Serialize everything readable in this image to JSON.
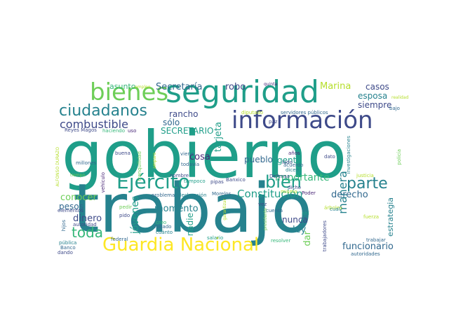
{
  "palette": {
    "dark_purple": "#482677",
    "indigo": "#3e4a89",
    "blue": "#31688e",
    "teal": "#26828e",
    "sea_green": "#1f9e89",
    "green": "#35b779",
    "lime": "#6ece58",
    "yellow_green": "#b5de2b",
    "yellow": "#fde725"
  },
  "words": [
    {
      "text": "gobierno"
    },
    {
      "text": "trabajo"
    },
    {
      "text": "seguridad"
    },
    {
      "text": "información"
    },
    {
      "text": "bienes"
    },
    {
      "text": "Guardia Nacional"
    },
    {
      "text": "ciudadanos"
    },
    {
      "text": "Ejército"
    },
    {
      "text": "bien"
    },
    {
      "text": "parte"
    },
    {
      "text": "combustible"
    },
    {
      "text": "Constitución"
    },
    {
      "text": "toda"
    },
    {
      "text": "manera"
    },
    {
      "text": "Secretaría"
    },
    {
      "text": "robo"
    },
    {
      "text": "Marina"
    },
    {
      "text": "casos"
    },
    {
      "text": "esposa"
    },
    {
      "text": "siempre"
    },
    {
      "text": "asunto"
    },
    {
      "text": "empleo"
    },
    {
      "text": "quinta"
    },
    {
      "text": "rancho"
    },
    {
      "text": "sólo"
    },
    {
      "text": "SECRETARIO"
    },
    {
      "text": "tarjeta"
    },
    {
      "text": "cosa"
    },
    {
      "text": "pueblo"
    },
    {
      "text": "gente"
    },
    {
      "text": "importante"
    },
    {
      "text": "derecho"
    },
    {
      "text": "conocer"
    },
    {
      "text": "pesos"
    },
    {
      "text": "dinero"
    },
    {
      "text": "jóvenes"
    },
    {
      "text": "momento"
    },
    {
      "text": "nadie"
    },
    {
      "text": "nunca"
    },
    {
      "text": "ley"
    },
    {
      "text": "dar"
    },
    {
      "text": "estrategia"
    },
    {
      "text": "funcionario"
    },
    {
      "text": "Reyes Magos"
    },
    {
      "text": "haciendo"
    },
    {
      "text": "uso"
    },
    {
      "text": "ALFONSO DURAZO"
    },
    {
      "text": "millones"
    },
    {
      "text": "tiempo"
    },
    {
      "text": "vehículo"
    },
    {
      "text": "buena"
    },
    {
      "text": "tranquilidad"
    },
    {
      "text": "amparo"
    },
    {
      "text": "nombre"
    },
    {
      "text": "viene"
    },
    {
      "text": "todavía"
    },
    {
      "text": "tampoco"
    },
    {
      "text": "pipas"
    },
    {
      "text": "Banxico"
    },
    {
      "text": "problema"
    },
    {
      "text": "declaración"
    },
    {
      "text": "Defensa"
    },
    {
      "text": "dicho"
    },
    {
      "text": "dicen"
    },
    {
      "text": "lado"
    },
    {
      "text": "años"
    },
    {
      "text": "dato"
    },
    {
      "text": "diputado"
    },
    {
      "text": "servidores públicos"
    },
    {
      "text": "paz"
    },
    {
      "text": "investigaciones"
    },
    {
      "text": "justicia"
    },
    {
      "text": "acuerdo"
    },
    {
      "text": "realidad"
    },
    {
      "text": "bajo"
    },
    {
      "text": "policía"
    },
    {
      "text": "elementos"
    },
    {
      "text": "pedir"
    },
    {
      "text": "pido"
    },
    {
      "text": "creo"
    },
    {
      "text": "robado"
    },
    {
      "text": "cuánto"
    },
    {
      "text": "hijos"
    },
    {
      "text": "autoridad"
    },
    {
      "text": "pública"
    },
    {
      "text": "Banco"
    },
    {
      "text": "dando"
    },
    {
      "text": "federal"
    },
    {
      "text": "salario"
    },
    {
      "text": "Morelos"
    },
    {
      "text": "garantizar"
    },
    {
      "text": "mismo"
    },
    {
      "text": "Poder"
    },
    {
      "text": "vez"
    },
    {
      "text": "cuenta"
    },
    {
      "text": "presidente"
    },
    {
      "text": "resolver"
    },
    {
      "text": "árboles"
    },
    {
      "text": "trabajadores"
    },
    {
      "text": "fuerza"
    },
    {
      "text": "trabajar"
    },
    {
      "text": "autoridades"
    },
    {
      "text": "cual"
    },
    {
      "text": "ahí"
    }
  ]
}
